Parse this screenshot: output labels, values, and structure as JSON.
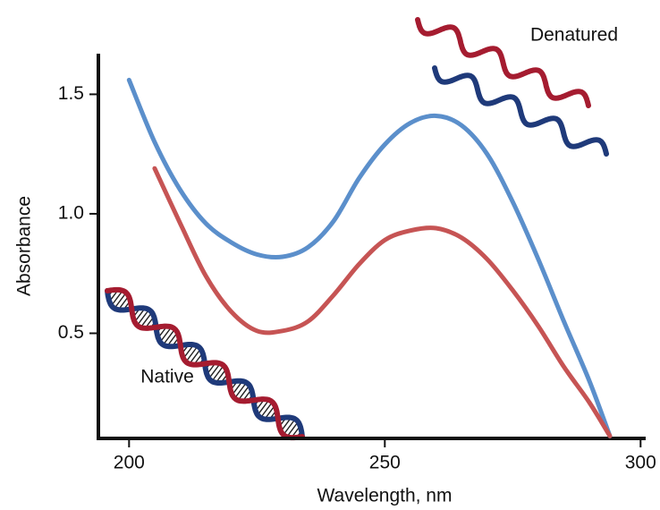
{
  "chart_data": {
    "type": "line",
    "xlabel": "Wavelength, nm",
    "ylabel": "Absorbance",
    "annotations": [
      "Denatured",
      "Native"
    ],
    "x": [
      200,
      205,
      210,
      215,
      220,
      225,
      230,
      235,
      240,
      245,
      250,
      255,
      260,
      265,
      270,
      275,
      280,
      285,
      290,
      294
    ],
    "series": [
      {
        "name": "Denatured",
        "color": "#5b8fcb",
        "values": [
          1.56,
          1.3,
          1.1,
          0.96,
          0.88,
          0.83,
          0.82,
          0.86,
          0.97,
          1.15,
          1.29,
          1.38,
          1.41,
          1.37,
          1.25,
          1.05,
          0.81,
          0.55,
          0.3,
          0.07
        ]
      },
      {
        "name": "Native",
        "color": "#c65454",
        "values": [
          null,
          1.19,
          0.96,
          0.74,
          0.59,
          0.51,
          0.51,
          0.55,
          0.66,
          0.79,
          0.89,
          0.93,
          0.94,
          0.9,
          0.81,
          0.68,
          0.53,
          0.36,
          0.21,
          0.07
        ]
      }
    ],
    "xlim": [
      194,
      301
    ],
    "ylim": [
      0.06,
      1.67
    ],
    "xticks": [
      200,
      250,
      300
    ],
    "yticks": [
      0.5,
      {
        "value": 1.0,
        "label": "1.0"
      },
      1.5
    ]
  }
}
